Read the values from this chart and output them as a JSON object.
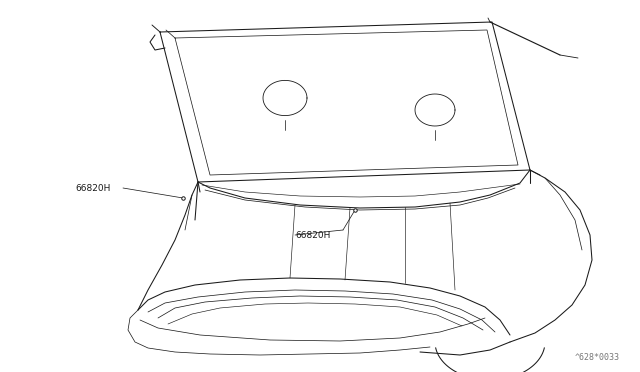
{
  "background_color": "#ffffff",
  "line_color": "#1a1a1a",
  "line_color_light": "#4a4a4a",
  "fig_width": 6.4,
  "fig_height": 3.72,
  "dpi": 100,
  "label_1": "66820H",
  "label_2": "66820H",
  "part_number": "^628*0033",
  "font_size": 6.5,
  "part_font_size": 6.0
}
